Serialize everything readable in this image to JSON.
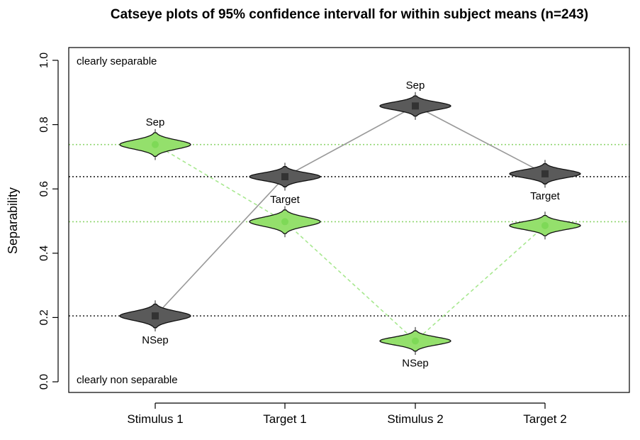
{
  "chart_data": {
    "type": "scatter",
    "title": "Catseye plots of 95% confidence intervall for within subject means (n=243)",
    "xlabel": "",
    "ylabel": "Separability",
    "ylim": [
      0,
      1
    ],
    "categories": [
      "Stimulus 1",
      "Target 1",
      "Stimulus 2",
      "Target 2"
    ],
    "yticks": [
      "0.0",
      "0.2",
      "0.4",
      "0.6",
      "0.8",
      "1.0"
    ],
    "corner_labels": {
      "top": "clearly separable",
      "bottom": "clearly non separable"
    },
    "series": [
      {
        "color": "#4d4d4d",
        "fill": "#5a5a5a",
        "line_color": "#999999",
        "line_style": "solid",
        "values": [
          0.205,
          0.638,
          0.858,
          0.647
        ],
        "ci_halfwidth": [
          0.035,
          0.03,
          0.03,
          0.03
        ],
        "point_labels": [
          "NSep",
          "",
          "Sep",
          "Target"
        ],
        "label_side": [
          "below",
          "",
          "above",
          "below"
        ]
      },
      {
        "color": "#8fd66f",
        "fill": "#94e06c",
        "line_color": "#a8e890",
        "line_style": "dashed",
        "values": [
          0.738,
          0.498,
          0.127,
          0.486
        ],
        "ci_halfwidth": [
          0.035,
          0.035,
          0.03,
          0.03
        ],
        "point_labels": [
          "Sep",
          "Target",
          "NSep",
          ""
        ],
        "label_side": [
          "above",
          "above",
          "below",
          ""
        ]
      }
    ],
    "reference_lines": [
      {
        "y": 0.738,
        "color": "#8fd66f"
      },
      {
        "y": 0.498,
        "color": "#8fd66f"
      },
      {
        "y": 0.638,
        "color": "#222222"
      },
      {
        "y": 0.205,
        "color": "#222222"
      }
    ],
    "grid": false,
    "legend": "none"
  }
}
